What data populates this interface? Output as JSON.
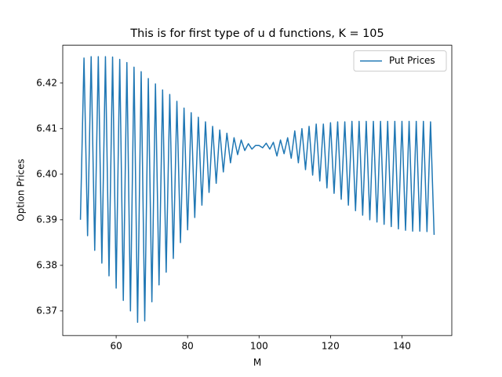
{
  "chart_data": {
    "type": "line",
    "title": "This is for first type of u d functions, K = 105",
    "x_label": "M",
    "y_label": "Option Prices",
    "x": [
      50,
      51,
      52,
      53,
      54,
      55,
      56,
      57,
      58,
      59,
      60,
      61,
      62,
      63,
      64,
      65,
      66,
      67,
      68,
      69,
      70,
      71,
      72,
      73,
      74,
      75,
      76,
      77,
      78,
      79,
      80,
      81,
      82,
      83,
      84,
      85,
      86,
      87,
      88,
      89,
      90,
      91,
      92,
      93,
      94,
      95,
      96,
      97,
      98,
      99,
      100,
      101,
      102,
      103,
      104,
      105,
      106,
      107,
      108,
      109,
      110,
      111,
      112,
      113,
      114,
      115,
      116,
      117,
      118,
      119,
      120,
      121,
      122,
      123,
      124,
      125,
      126,
      127,
      128,
      129,
      130,
      131,
      132,
      133,
      134,
      135,
      136,
      137,
      138,
      139,
      140,
      141,
      142,
      143,
      144,
      145,
      146,
      147,
      148,
      149
    ],
    "series": [
      {
        "name": "Put Prices",
        "color": "#1f77b4",
        "values": [
          6.39,
          6.4255,
          6.3865,
          6.4258,
          6.3833,
          6.4258,
          6.3805,
          6.4258,
          6.3777,
          6.4257,
          6.375,
          6.4252,
          6.3723,
          6.4245,
          6.37,
          6.4235,
          6.3675,
          6.4225,
          6.3678,
          6.421,
          6.372,
          6.4198,
          6.3757,
          6.4185,
          6.3785,
          6.4175,
          6.3815,
          6.416,
          6.385,
          6.4145,
          6.3878,
          6.4135,
          6.3905,
          6.4125,
          6.3932,
          6.4115,
          6.396,
          6.4105,
          6.398,
          6.4097,
          6.4005,
          6.409,
          6.4025,
          6.408,
          6.4043,
          6.4075,
          6.4052,
          6.4067,
          6.4055,
          6.4063,
          6.4063,
          6.4058,
          6.4068,
          6.4055,
          6.407,
          6.404,
          6.4075,
          6.4045,
          6.408,
          6.4035,
          6.4095,
          6.4025,
          6.41,
          6.401,
          6.4105,
          6.3998,
          6.411,
          6.3985,
          6.411,
          6.397,
          6.4113,
          6.3958,
          6.4115,
          6.3945,
          6.4115,
          6.3932,
          6.4116,
          6.392,
          6.4116,
          6.391,
          6.4116,
          6.39,
          6.4116,
          6.3895,
          6.4116,
          6.389,
          6.4116,
          6.3885,
          6.4116,
          6.388,
          6.4116,
          6.3877,
          6.4116,
          6.3875,
          6.4116,
          6.3875,
          6.4116,
          6.3874,
          6.4115,
          6.3867
        ]
      }
    ],
    "xlim": [
      45.05,
      153.95
    ],
    "xticks": [
      60,
      80,
      100,
      120,
      140
    ],
    "ylim": [
      6.3646,
      6.4283
    ],
    "yticks": [
      6.37,
      6.38,
      6.39,
      {
        "value": 6.4,
        "label": "6.40"
      },
      6.41,
      6.42
    ],
    "legend": "upper right"
  }
}
